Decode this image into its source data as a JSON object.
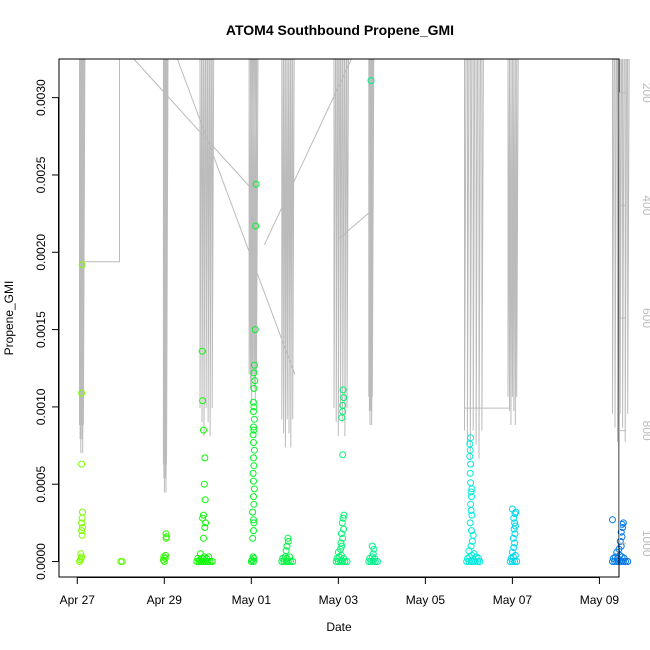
{
  "chart_data": {
    "type": "scatter",
    "title": "ATOM4 Southbound Propene_GMI",
    "xlabel": "Date",
    "ylabel": "Propene_GMI",
    "x_ticks": [
      "Apr 27",
      "Apr 29",
      "May 01",
      "May 03",
      "May 05",
      "May 07",
      "May 09"
    ],
    "y_ticks": [
      "0.0000",
      "0.0005",
      "0.0010",
      "0.0015",
      "0.0020",
      "0.0025",
      "0.0030"
    ],
    "y2_ticks": [
      "200",
      "400",
      "600",
      "800",
      "1000"
    ],
    "xlim_days": [
      -0.42,
      12.45
    ],
    "ylim": [
      -0.0001,
      0.00325
    ],
    "y2lim": [
      1060,
      140
    ],
    "series": [
      {
        "values": [
          [
            0.05,
            0
          ],
          [
            0.07,
            1e-05
          ],
          [
            0.09,
            2e-05
          ],
          [
            0.1,
            3e-05
          ],
          [
            0.08,
            5e-05
          ],
          [
            0.11,
            0.00017
          ],
          [
            0.1,
            0.0002
          ],
          [
            0.12,
            0.00022
          ],
          [
            0.1,
            0.00025
          ],
          [
            0.11,
            0.00028
          ],
          [
            0.12,
            0.00032
          ],
          [
            0.1,
            0.00063
          ],
          [
            0.1,
            0.00109
          ],
          [
            0.11,
            0.00192
          ],
          [
            1.0,
            0
          ],
          [
            1.03,
            0
          ],
          [
            2.0,
            0
          ],
          [
            1.98,
            1e-05
          ],
          [
            2.02,
            2e-05
          ],
          [
            1.99,
            3e-05
          ],
          [
            2.03,
            4e-05
          ],
          [
            2.04,
            0.00015
          ],
          [
            2.05,
            0.00016
          ],
          [
            2.04,
            0.00018
          ],
          [
            2.75,
            0
          ],
          [
            2.8,
            0
          ],
          [
            2.85,
            0
          ],
          [
            2.9,
            0
          ],
          [
            2.95,
            0
          ],
          [
            3.0,
            0
          ],
          [
            3.05,
            0
          ],
          [
            3.1,
            0
          ],
          [
            2.77,
            2e-05
          ],
          [
            2.82,
            1e-05
          ],
          [
            2.87,
            2e-05
          ],
          [
            2.92,
            3e-05
          ],
          [
            2.97,
            2e-05
          ],
          [
            3.02,
            3e-05
          ],
          [
            2.83,
            5e-05
          ],
          [
            2.9,
            0.00015
          ],
          [
            2.93,
            0.00022
          ],
          [
            2.95,
            0.00025
          ],
          [
            2.88,
            0.00028
          ],
          [
            2.9,
            0.0003
          ],
          [
            2.94,
            0.0004
          ],
          [
            2.92,
            0.0005
          ],
          [
            2.93,
            0.00067
          ],
          [
            2.9,
            0.00085
          ],
          [
            2.88,
            0.00104
          ],
          [
            2.87,
            0.00136
          ],
          [
            4.0,
            0
          ],
          [
            4.05,
            0
          ],
          [
            4.02,
            1e-05
          ],
          [
            4.06,
            2e-05
          ],
          [
            4.04,
            3e-05
          ],
          [
            4.03,
            0.00015
          ],
          [
            4.05,
            0.0002
          ],
          [
            4.06,
            0.00025
          ],
          [
            4.05,
            0.00027
          ],
          [
            4.03,
            0.00032
          ],
          [
            4.06,
            0.00037
          ],
          [
            4.05,
            0.00042
          ],
          [
            4.07,
            0.00047
          ],
          [
            4.05,
            0.00052
          ],
          [
            4.04,
            0.00057
          ],
          [
            4.06,
            0.00062
          ],
          [
            4.05,
            0.00067
          ],
          [
            4.07,
            0.00072
          ],
          [
            4.05,
            0.00077
          ],
          [
            4.04,
            0.00082
          ],
          [
            4.06,
            0.00085
          ],
          [
            4.05,
            0.00087
          ],
          [
            4.07,
            0.00092
          ],
          [
            4.05,
            0.00097
          ],
          [
            4.06,
            0.001
          ],
          [
            4.05,
            0.00103
          ],
          [
            4.06,
            0.00112
          ],
          [
            4.08,
            0.00117
          ],
          [
            4.06,
            0.00122
          ],
          [
            4.07,
            0.00127
          ],
          [
            4.09,
            0.0015
          ],
          [
            4.1,
            0.00217
          ],
          [
            4.11,
            0.00244
          ],
          [
            4.7,
            0
          ],
          [
            4.75,
            0
          ],
          [
            4.8,
            0
          ],
          [
            4.85,
            0
          ],
          [
            4.9,
            0
          ],
          [
            4.95,
            0
          ],
          [
            4.72,
            2e-05
          ],
          [
            4.78,
            3e-05
          ],
          [
            4.82,
            2e-05
          ],
          [
            4.88,
            3e-05
          ],
          [
            4.8,
            7e-05
          ],
          [
            4.82,
            0.0001
          ],
          [
            4.85,
            0.00013
          ],
          [
            4.84,
            0.00015
          ],
          [
            5.95,
            0
          ],
          [
            6.0,
            0
          ],
          [
            6.05,
            0
          ],
          [
            6.1,
            0
          ],
          [
            6.15,
            0
          ],
          [
            6.2,
            0
          ],
          [
            5.97,
            2e-05
          ],
          [
            6.02,
            3e-05
          ],
          [
            6.07,
            4e-05
          ],
          [
            6.12,
            2e-05
          ],
          [
            6.0,
            6e-05
          ],
          [
            6.05,
            8e-05
          ],
          [
            6.08,
            0.0001
          ],
          [
            6.06,
            0.00012
          ],
          [
            6.1,
            0.00015
          ],
          [
            6.07,
            0.00018
          ],
          [
            6.12,
            0.00021
          ],
          [
            6.09,
            0.00025
          ],
          [
            6.11,
            0.00028
          ],
          [
            6.13,
            0.0003
          ],
          [
            6.1,
            0.00069
          ],
          [
            6.08,
            0.00093
          ],
          [
            6.1,
            0.00097
          ],
          [
            6.1,
            0.00101
          ],
          [
            6.12,
            0.00106
          ],
          [
            6.11,
            0.00111
          ],
          [
            6.7,
            0
          ],
          [
            6.75,
            0
          ],
          [
            6.8,
            0
          ],
          [
            6.85,
            0
          ],
          [
            6.9,
            0
          ],
          [
            6.72,
            2e-05
          ],
          [
            6.78,
            3e-05
          ],
          [
            6.83,
            2e-05
          ],
          [
            6.8,
            5e-05
          ],
          [
            6.82,
            8e-05
          ],
          [
            6.78,
            0.0001
          ],
          [
            6.75,
            0.00311
          ],
          [
            8.95,
            0
          ],
          [
            9.0,
            0
          ],
          [
            9.05,
            0
          ],
          [
            9.1,
            0
          ],
          [
            9.15,
            0
          ],
          [
            9.2,
            0
          ],
          [
            9.25,
            0
          ],
          [
            8.97,
            2e-05
          ],
          [
            9.02,
            3e-05
          ],
          [
            9.07,
            4e-05
          ],
          [
            9.12,
            5e-05
          ],
          [
            9.17,
            3e-05
          ],
          [
            9.22,
            2e-05
          ],
          [
            9.0,
            7e-05
          ],
          [
            9.05,
            0.0001
          ],
          [
            9.08,
            0.00013
          ],
          [
            9.1,
            0.00017
          ],
          [
            9.06,
            0.0002
          ],
          [
            9.03,
            0.00025
          ],
          [
            9.07,
            0.0003
          ],
          [
            9.05,
            0.00033
          ],
          [
            9.04,
            0.00037
          ],
          [
            9.06,
            0.00042
          ],
          [
            9.05,
            0.00045
          ],
          [
            9.07,
            0.00047
          ],
          [
            9.04,
            0.00051
          ],
          [
            9.03,
            0.00057
          ],
          [
            9.04,
            0.00063
          ],
          [
            9.02,
            0.00068
          ],
          [
            9.03,
            0.00072
          ],
          [
            9.02,
            0.00076
          ],
          [
            9.04,
            0.0008
          ],
          [
            9.95,
            0
          ],
          [
            10.0,
            0
          ],
          [
            10.05,
            0
          ],
          [
            10.1,
            0
          ],
          [
            9.97,
            2e-05
          ],
          [
            10.02,
            3e-05
          ],
          [
            10.07,
            4e-05
          ],
          [
            10.0,
            6e-05
          ],
          [
            10.03,
            9e-05
          ],
          [
            10.05,
            0.00012
          ],
          [
            10.02,
            0.00015
          ],
          [
            10.06,
            0.00018
          ],
          [
            10.04,
            0.00021
          ],
          [
            10.07,
            0.00023
          ],
          [
            10.05,
            0.00025
          ],
          [
            10.03,
            0.00028
          ],
          [
            10.06,
            0.00031
          ],
          [
            10.08,
            0.00032
          ],
          [
            10.0,
            0.00034
          ],
          [
            12.3,
            0
          ],
          [
            12.35,
            0
          ],
          [
            12.4,
            0
          ],
          [
            12.45,
            0
          ],
          [
            12.5,
            0
          ],
          [
            12.55,
            0
          ],
          [
            12.6,
            0
          ],
          [
            12.65,
            0
          ],
          [
            12.32,
            2e-05
          ],
          [
            12.37,
            3e-05
          ],
          [
            12.42,
            2e-05
          ],
          [
            12.47,
            4e-05
          ],
          [
            12.52,
            3e-05
          ],
          [
            12.57,
            2e-05
          ],
          [
            12.4,
            6e-05
          ],
          [
            12.45,
            8e-05
          ],
          [
            12.5,
            0.0001
          ],
          [
            12.48,
            0.00013
          ],
          [
            12.52,
            0.00016
          ],
          [
            12.5,
            0.00019
          ],
          [
            12.53,
            0.00022
          ],
          [
            12.52,
            0.00024
          ],
          [
            12.55,
            0.00025
          ],
          [
            12.3,
            0.00027
          ]
        ]
      }
    ],
    "grid": false,
    "colors": {
      "points_start": "#7fff00",
      "points_end": "#0a7fff",
      "altitude_line": "#bbbbbb",
      "axis": "#000000"
    }
  }
}
